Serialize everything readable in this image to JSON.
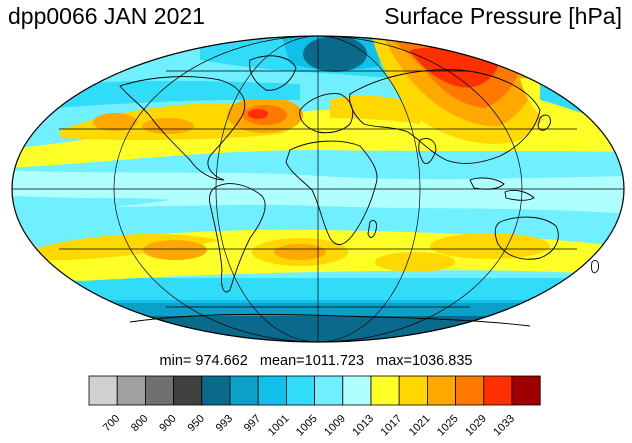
{
  "header": {
    "title": "dpp0066 JAN 2021",
    "variable": "Surface Pressure [hPa]"
  },
  "stats": {
    "text": "min= 974.662   mean=1011.723   max=1036.835",
    "min": 974.662,
    "mean": 1011.723,
    "max": 1036.835
  },
  "map": {
    "projection": "Mollweide",
    "central_longitude": 0,
    "graticule": true
  },
  "colorbar": {
    "colors": [
      "#d0d0d0",
      "#a0a0a0",
      "#707070",
      "#404040",
      "#0a6a8c",
      "#0aa0c8",
      "#10c0e8",
      "#30dcf8",
      "#70f0ff",
      "#b0ffff",
      "#ffff28",
      "#ffd800",
      "#ffa800",
      "#ff7800",
      "#ff3000",
      "#a00000"
    ],
    "tick_labels": [
      "700",
      "800",
      "900",
      "950",
      "993",
      "997",
      "1001",
      "1005",
      "1009",
      "1013",
      "1017",
      "1021",
      "1025",
      "1029",
      "1033"
    ]
  }
}
